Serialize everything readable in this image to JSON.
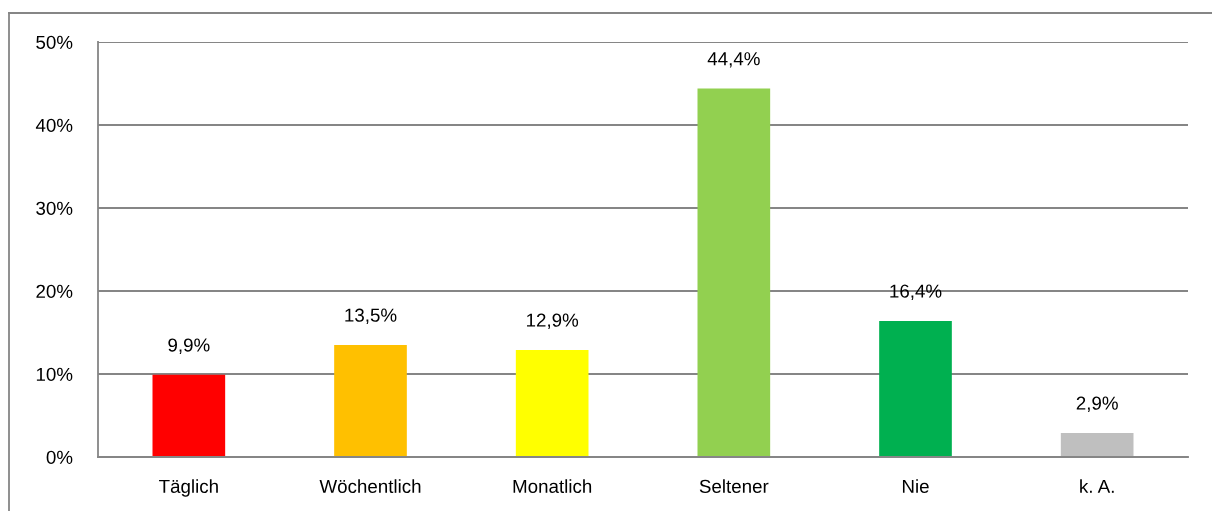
{
  "chart_data": {
    "type": "bar",
    "categories": [
      "Täglich",
      "Wöchentlich",
      "Monatlich",
      "Seltener",
      "Nie",
      "k. A."
    ],
    "values": [
      9.9,
      13.5,
      12.9,
      44.4,
      16.4,
      2.9
    ],
    "colors": [
      "#ff0000",
      "#ffc000",
      "#ffff00",
      "#92d050",
      "#00b050",
      "#bfbfbf"
    ],
    "value_labels": [
      "9,9%",
      "13,5%",
      "12,9%",
      "44,4%",
      "16,4%",
      "2,9%"
    ],
    "ylim": [
      0,
      50
    ],
    "yticks": [
      {
        "value": 0,
        "label": "0%"
      },
      {
        "value": 10,
        "label": "10%"
      },
      {
        "value": 20,
        "label": "20%"
      },
      {
        "value": 30,
        "label": "30%"
      },
      {
        "value": 40,
        "label": "40%"
      },
      {
        "value": 50,
        "label": "50%"
      }
    ],
    "grid": "y"
  }
}
